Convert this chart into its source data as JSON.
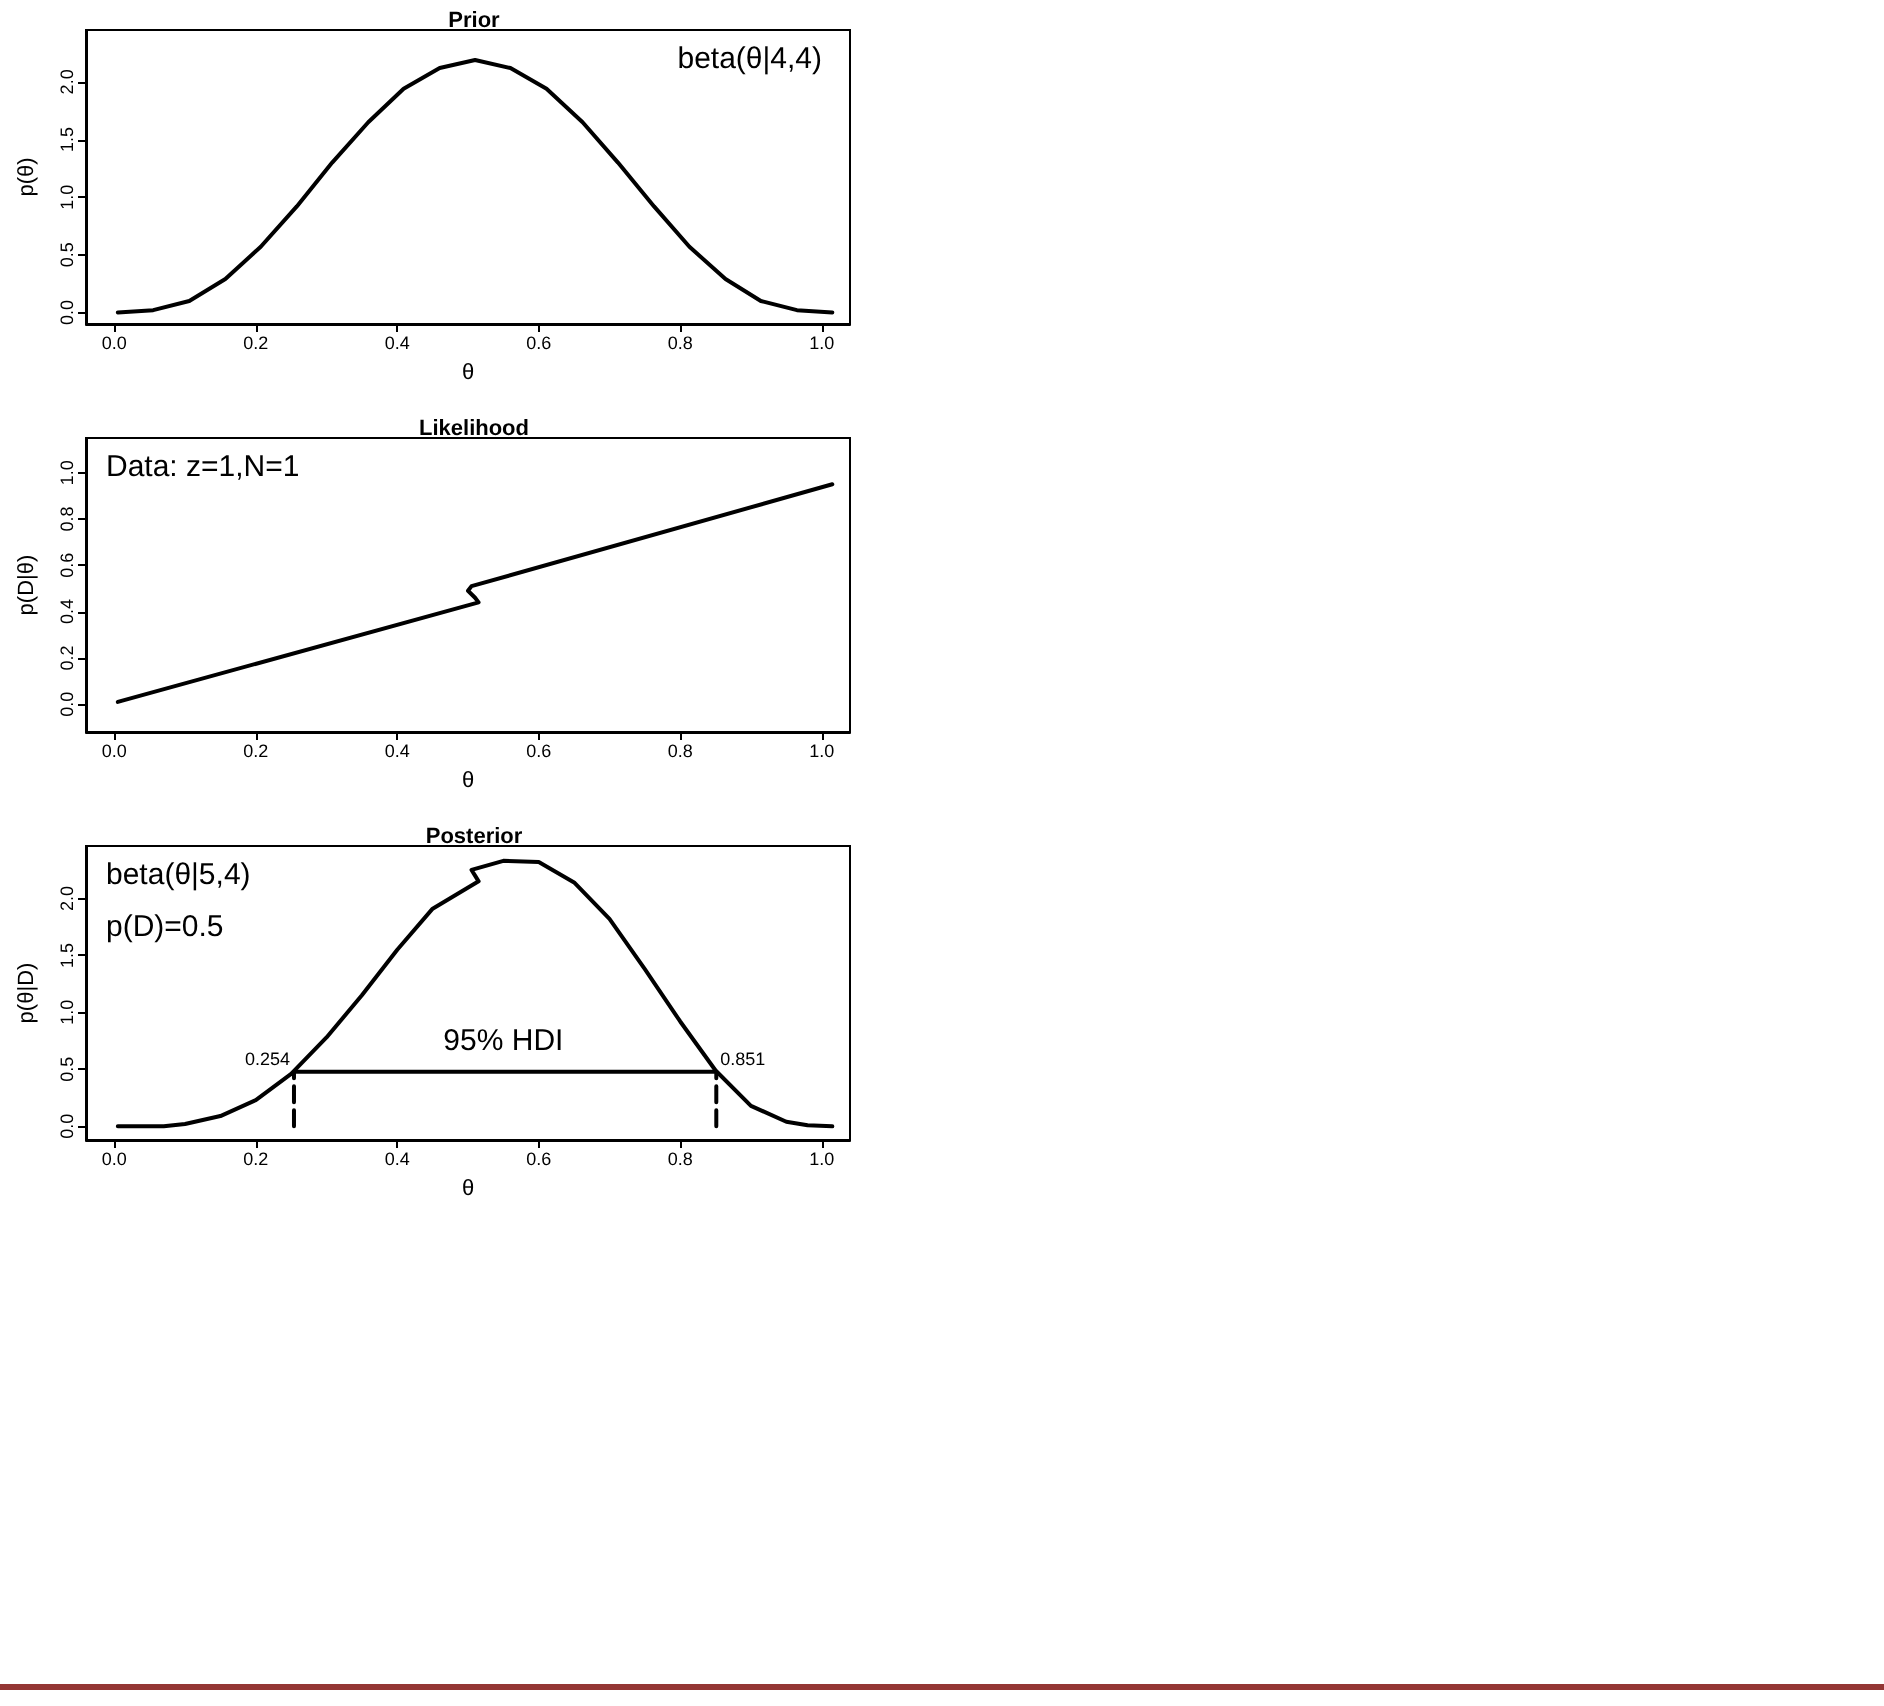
{
  "chart_data": [
    {
      "type": "line",
      "title": "Prior",
      "xlabel": "θ",
      "ylabel": "p(θ)",
      "marker": "none",
      "xlim": [
        -0.04,
        1.04
      ],
      "ylim": [
        -0.1,
        2.45
      ],
      "xticks": [
        {
          "value": 0,
          "label": "0.0"
        },
        {
          "value": 0.2,
          "label": "0.2"
        },
        {
          "value": 0.4,
          "label": "0.4"
        },
        {
          "value": 0.6,
          "label": "0.6"
        },
        {
          "value": 0.8,
          "label": "0.8"
        },
        {
          "value": 1,
          "label": "1.0"
        }
      ],
      "yticks": [
        {
          "value": 0,
          "label": "0.0"
        },
        {
          "value": 0.5,
          "label": "0.5"
        },
        {
          "value": 1,
          "label": "1.0"
        },
        {
          "value": 1.5,
          "label": "1.5"
        },
        {
          "value": 2,
          "label": "2.0"
        }
      ],
      "series": [
        {
          "color": "#000000",
          "x": [
            0.005,
            0.055,
            0.106,
            0.157,
            0.207,
            0.258,
            0.308,
            0.359,
            0.409,
            0.46,
            0.51,
            0.56,
            0.611,
            0.662,
            0.712,
            0.763,
            0.813,
            0.864,
            0.914,
            0.965,
            1.015
          ],
          "values": [
            0,
            0.02,
            0.1,
            0.29,
            0.57,
            0.92,
            1.3,
            1.65,
            1.94,
            2.12,
            2.19,
            2.12,
            1.94,
            1.65,
            1.3,
            0.92,
            0.57,
            0.29,
            0.1,
            0.02,
            0
          ]
        }
      ],
      "annotations": [
        "beta(θ|4,4)"
      ]
    },
    {
      "type": "line",
      "title": "Likelihood",
      "xlabel": "θ",
      "ylabel": "p(D|θ)",
      "marker": "none",
      "xlim": [
        -0.04,
        1.04
      ],
      "ylim": [
        -0.12,
        1.15
      ],
      "xticks": [
        {
          "value": 0,
          "label": "0.0"
        },
        {
          "value": 0.2,
          "label": "0.2"
        },
        {
          "value": 0.4,
          "label": "0.4"
        },
        {
          "value": 0.6,
          "label": "0.6"
        },
        {
          "value": 0.8,
          "label": "0.8"
        },
        {
          "value": 1,
          "label": "1.0"
        }
      ],
      "yticks": [
        {
          "value": 0,
          "label": "0.0"
        },
        {
          "value": 0.2,
          "label": "0.2"
        },
        {
          "value": 0.4,
          "label": "0.4"
        },
        {
          "value": 0.6,
          "label": "0.6"
        },
        {
          "value": 0.8,
          "label": "0.8"
        },
        {
          "value": 1,
          "label": "1.0"
        }
      ],
      "series": [
        {
          "color": "#000000",
          "x": [
            0.005,
            0.515,
            0.51,
            0.5,
            0.505,
            1.015
          ],
          "values": [
            0.01,
            0.44,
            0.46,
            0.49,
            0.51,
            0.95
          ]
        }
      ],
      "annotations": [
        "Data: z=1,N=1"
      ]
    },
    {
      "type": "line",
      "title": "Posterior",
      "xlabel": "θ",
      "ylabel": "p(θ|D)",
      "marker": "none",
      "xlim": [
        -0.04,
        1.04
      ],
      "ylim": [
        -0.12,
        2.46
      ],
      "xticks": [
        {
          "value": 0,
          "label": "0.0"
        },
        {
          "value": 0.2,
          "label": "0.2"
        },
        {
          "value": 0.4,
          "label": "0.4"
        },
        {
          "value": 0.6,
          "label": "0.6"
        },
        {
          "value": 0.8,
          "label": "0.8"
        },
        {
          "value": 1,
          "label": "1.0"
        }
      ],
      "yticks": [
        {
          "value": 0,
          "label": "0.0"
        },
        {
          "value": 0.5,
          "label": "0.5"
        },
        {
          "value": 1,
          "label": "1.0"
        },
        {
          "value": 1.5,
          "label": "1.5"
        },
        {
          "value": 2,
          "label": "2.0"
        }
      ],
      "series": [
        {
          "color": "#000000",
          "x": [
            0.005,
            0.07,
            0.1,
            0.15,
            0.2,
            0.25,
            0.3,
            0.35,
            0.4,
            0.45,
            0.515,
            0.51,
            0.505,
            0.55,
            0.6,
            0.65,
            0.7,
            0.75,
            0.8,
            0.85,
            0.9,
            0.95,
            0.98,
            1.015
          ],
          "values": [
            0,
            0,
            0.02,
            0.09,
            0.23,
            0.46,
            0.78,
            1.15,
            1.55,
            1.91,
            2.15,
            2.2,
            2.25,
            2.33,
            2.32,
            2.14,
            1.82,
            1.38,
            0.92,
            0.49,
            0.18,
            0.04,
            0.01,
            0
          ]
        },
        {
          "color": "#000000",
          "x": [
            0.254,
            0.851
          ],
          "values": [
            0.48,
            0.48
          ]
        },
        {
          "color": "#000000",
          "line_style": "dashed",
          "x": [
            0.254,
            0.254
          ],
          "values": [
            0,
            0.48
          ]
        },
        {
          "color": "#000000",
          "line_style": "dashed",
          "x": [
            0.851,
            0.851
          ],
          "values": [
            0,
            0.48
          ]
        }
      ],
      "annotations": [
        "beta(θ|5,4)",
        "p(D)=0.5",
        {
          "text": "95% HDI",
          "x": 0.55,
          "y": 0.48
        },
        {
          "text": "0.254",
          "x": 0.254,
          "y": 0.48
        },
        {
          "text": "0.851",
          "x": 0.851,
          "y": 0.48
        }
      ]
    }
  ]
}
